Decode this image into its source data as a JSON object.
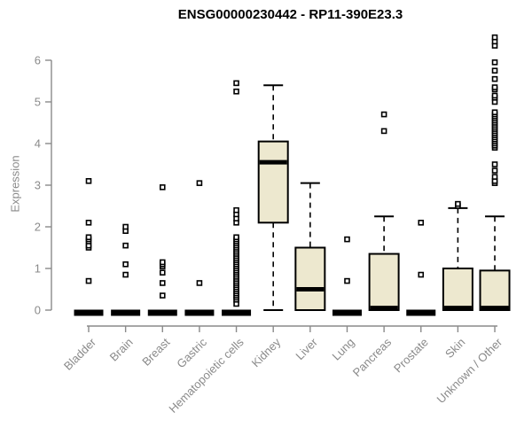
{
  "header": {
    "title": "ENSG00000230442 - RP11-390E23.3"
  },
  "chart_data": {
    "type": "boxplot",
    "title": "ENSG00000230442 - RP11-390E23.3",
    "xlabel": "",
    "ylabel": "Expression",
    "ylim": [
      0,
      6.6
    ],
    "y_ticks": [
      0,
      1,
      2,
      3,
      4,
      5,
      6
    ],
    "grid": false,
    "legend": "none",
    "box_fill": "#EDE8CF",
    "box_stroke": "#000000",
    "axis_color": "#8a8a8a",
    "categories": [
      "Bladder",
      "Brain",
      "Breast",
      "Gastric",
      "Hematopoietic cells",
      "Kidney",
      "Liver",
      "Lung",
      "Pancreas",
      "Prostate",
      "Skin",
      "Unknown / Other"
    ],
    "series": [
      {
        "name": "Bladder",
        "q1": 0,
        "median": 0,
        "q3": 0,
        "whisker_low": 0,
        "whisker_high": 0,
        "outliers": [
          0.7,
          1.5,
          1.55,
          1.65,
          1.7,
          1.75,
          2.1,
          3.1
        ]
      },
      {
        "name": "Brain",
        "q1": 0,
        "median": 0,
        "q3": 0,
        "whisker_low": 0,
        "whisker_high": 0,
        "outliers": [
          0.85,
          1.1,
          1.55,
          1.9,
          2.0
        ]
      },
      {
        "name": "Breast",
        "q1": 0,
        "median": 0,
        "q3": 0,
        "whisker_low": 0,
        "whisker_high": 0,
        "outliers": [
          0.35,
          0.65,
          0.9,
          1.05,
          1.1,
          1.15,
          2.95
        ]
      },
      {
        "name": "Gastric",
        "q1": 0,
        "median": 0,
        "q3": 0,
        "whisker_low": 0,
        "whisker_high": 0,
        "outliers": [
          0.65,
          3.05
        ]
      },
      {
        "name": "Hematopoietic cells",
        "q1": 0,
        "median": 0,
        "q3": 0,
        "whisker_low": 0,
        "whisker_high": 0,
        "outliers": [
          0.15,
          0.25,
          0.3,
          0.35,
          0.4,
          0.45,
          0.5,
          0.55,
          0.6,
          0.65,
          0.7,
          0.75,
          0.8,
          0.85,
          0.9,
          0.95,
          1.0,
          1.05,
          1.1,
          1.15,
          1.2,
          1.25,
          1.3,
          1.35,
          1.4,
          1.45,
          1.5,
          1.55,
          1.6,
          1.65,
          1.7,
          1.75,
          2.1,
          2.2,
          2.3,
          2.4,
          5.25,
          5.45
        ]
      },
      {
        "name": "Kidney",
        "q1": 2.1,
        "median": 3.55,
        "q3": 4.05,
        "whisker_low": 0,
        "whisker_high": 5.4,
        "outliers": []
      },
      {
        "name": "Liver",
        "q1": 0,
        "median": 0.5,
        "q3": 1.5,
        "whisker_low": 0,
        "whisker_high": 3.05,
        "outliers": []
      },
      {
        "name": "Lung",
        "q1": 0,
        "median": 0,
        "q3": 0,
        "whisker_low": 0,
        "whisker_high": 0,
        "outliers": [
          0.7,
          1.7
        ]
      },
      {
        "name": "Pancreas",
        "q1": 0,
        "median": 0.05,
        "q3": 1.35,
        "whisker_low": 0,
        "whisker_high": 2.25,
        "outliers": [
          4.3,
          4.7
        ]
      },
      {
        "name": "Prostate",
        "q1": 0,
        "median": 0,
        "q3": 0,
        "whisker_low": 0,
        "whisker_high": 0,
        "outliers": [
          0.85,
          2.1
        ]
      },
      {
        "name": "Skin",
        "q1": 0,
        "median": 0.05,
        "q3": 1.0,
        "whisker_low": 0,
        "whisker_high": 2.45,
        "outliers": [
          2.5,
          2.55
        ]
      },
      {
        "name": "Unknown / Other",
        "q1": 0,
        "median": 0.05,
        "q3": 0.95,
        "whisker_low": 0,
        "whisker_high": 2.25,
        "outliers": [
          3.05,
          3.1,
          3.2,
          3.35,
          3.5,
          3.9,
          3.95,
          4.0,
          4.05,
          4.1,
          4.15,
          4.2,
          4.25,
          4.3,
          4.35,
          4.4,
          4.45,
          4.5,
          4.55,
          4.6,
          4.65,
          4.7,
          4.75,
          5.0,
          5.1,
          5.15,
          5.3,
          5.35,
          5.55,
          5.75,
          5.95,
          6.35,
          6.45,
          6.55
        ]
      }
    ]
  }
}
